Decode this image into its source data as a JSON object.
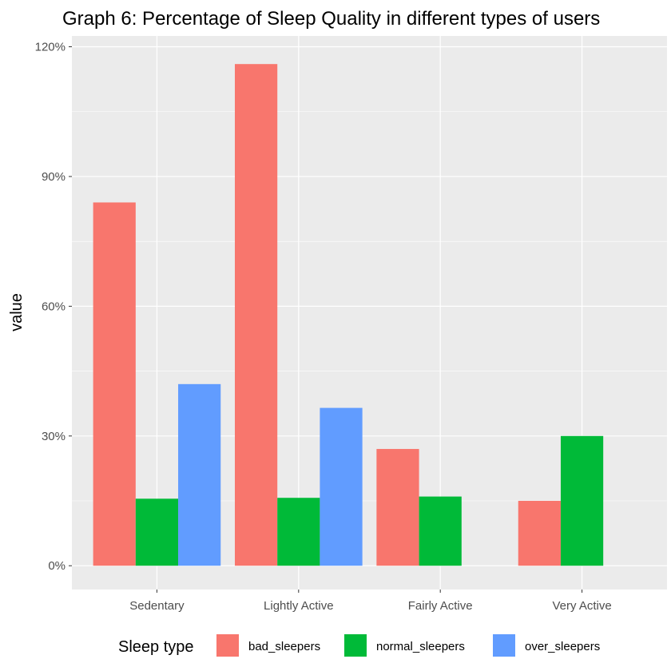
{
  "chart_data": {
    "type": "bar",
    "title": "Graph 6: Percentage of Sleep Quality in different types of users",
    "xlabel": "",
    "ylabel": "value",
    "categories": [
      "Sedentary",
      "Lightly Active",
      "Fairly Active",
      "Very Active"
    ],
    "series": [
      {
        "name": "bad_sleepers",
        "color": "#F8766D",
        "values": [
          84,
          116,
          27,
          15
        ]
      },
      {
        "name": "normal_sleepers",
        "color": "#00BA38",
        "values": [
          15.5,
          15.7,
          16,
          30
        ]
      },
      {
        "name": "over_sleepers",
        "color": "#619CFF",
        "values": [
          42,
          36.5,
          null,
          null
        ]
      }
    ],
    "ylim": [
      -5.5,
      122.5
    ],
    "yticks": [
      0,
      30,
      60,
      90,
      120
    ],
    "ytick_labels": [
      "0%",
      "30%",
      "60%",
      "90%",
      "120%"
    ],
    "legend_title": "Sleep type",
    "legend_position": "bottom",
    "grid": true,
    "panel_background": "#EBEBEB"
  }
}
